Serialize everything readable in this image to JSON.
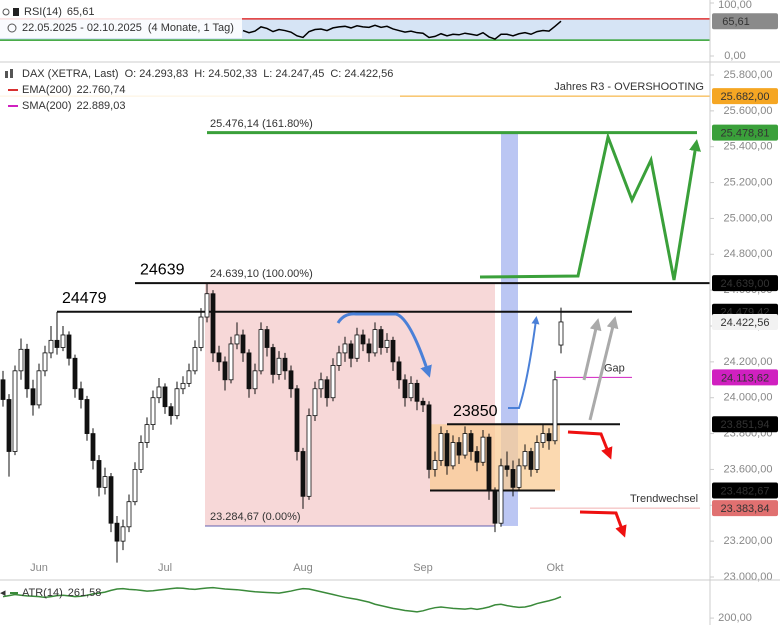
{
  "chart_data": [
    {
      "type": "candlestick",
      "title": "DAX (XETRA, Last)",
      "quote": [
        "O: 24.293,83",
        "H: 24.502,33",
        "L: 24.247,45",
        "C: 24.422,56"
      ],
      "indicators": [
        {
          "name": "EMA(200)",
          "value": "22.760,74",
          "color": "#d83030"
        },
        {
          "name": "SMA(200)",
          "value": "22.889,03",
          "color": "#d020c0"
        }
      ],
      "categories": [
        null,
        null,
        null,
        null,
        null,
        null,
        "Jun",
        null,
        null,
        null,
        null,
        null,
        null,
        null,
        null,
        null,
        null,
        null,
        null,
        null,
        null,
        null,
        null,
        null,
        null,
        null,
        null,
        "Jul",
        null,
        null,
        null,
        null,
        null,
        null,
        null,
        null,
        null,
        null,
        null,
        null,
        null,
        null,
        null,
        null,
        null,
        null,
        null,
        null,
        null,
        null,
        "Aug",
        null,
        null,
        null,
        null,
        null,
        null,
        null,
        null,
        null,
        null,
        null,
        null,
        null,
        null,
        null,
        null,
        null,
        null,
        null,
        "Sep",
        null,
        null,
        null,
        null,
        null,
        null,
        null,
        null,
        null,
        null,
        null,
        null,
        null,
        null,
        null,
        null,
        null,
        null,
        null,
        null,
        null,
        "Okt",
        null
      ],
      "ohlc": [
        [
          24100,
          24150,
          23950,
          23990
        ],
        [
          23990,
          24020,
          23560,
          23700
        ],
        [
          23700,
          24180,
          23680,
          24150
        ],
        [
          24150,
          24330,
          24100,
          24270
        ],
        [
          24270,
          24300,
          24000,
          24050
        ],
        [
          24050,
          24100,
          23900,
          23960
        ],
        [
          23960,
          24190,
          23940,
          24150
        ],
        [
          24150,
          24290,
          24120,
          24250
        ],
        [
          24250,
          24400,
          24220,
          24320
        ],
        [
          24320,
          24479,
          24240,
          24280
        ],
        [
          24280,
          24400,
          24260,
          24350
        ],
        [
          24350,
          24370,
          24180,
          24220
        ],
        [
          24220,
          24240,
          24000,
          24050
        ],
        [
          24050,
          24090,
          23940,
          23990
        ],
        [
          23990,
          24010,
          23760,
          23800
        ],
        [
          23800,
          23830,
          23600,
          23650
        ],
        [
          23650,
          23680,
          23450,
          23500
        ],
        [
          23500,
          23610,
          23460,
          23560
        ],
        [
          23560,
          23580,
          23250,
          23300
        ],
        [
          23300,
          23340,
          23080,
          23200
        ],
        [
          23200,
          23320,
          23150,
          23280
        ],
        [
          23280,
          23460,
          23250,
          23420
        ],
        [
          23420,
          23640,
          23400,
          23600
        ],
        [
          23600,
          23790,
          23580,
          23750
        ],
        [
          23750,
          23890,
          23720,
          23850
        ],
        [
          23850,
          24040,
          23820,
          24000
        ],
        [
          24000,
          24110,
          23970,
          24060
        ],
        [
          24060,
          24080,
          23910,
          23950
        ],
        [
          23950,
          23970,
          23850,
          23900
        ],
        [
          23900,
          24090,
          23880,
          24050
        ],
        [
          24050,
          24120,
          24020,
          24080
        ],
        [
          24080,
          24190,
          24060,
          24150
        ],
        [
          24150,
          24320,
          24130,
          24280
        ],
        [
          24280,
          24500,
          24260,
          24450
        ],
        [
          24450,
          24639,
          24420,
          24580
        ],
        [
          24580,
          24600,
          24200,
          24250
        ],
        [
          24250,
          24290,
          24150,
          24200
        ],
        [
          24200,
          24230,
          24040,
          24100
        ],
        [
          24100,
          24340,
          24080,
          24300
        ],
        [
          24300,
          24420,
          24270,
          24350
        ],
        [
          24350,
          24380,
          24200,
          24250
        ],
        [
          24250,
          24270,
          24000,
          24050
        ],
        [
          24050,
          24190,
          24020,
          24150
        ],
        [
          24150,
          24420,
          24130,
          24380
        ],
        [
          24380,
          24400,
          24230,
          24280
        ],
        [
          24280,
          24300,
          24080,
          24130
        ],
        [
          24130,
          24260,
          24100,
          24220
        ],
        [
          24220,
          24250,
          24100,
          24150
        ],
        [
          24150,
          24180,
          24000,
          24050
        ],
        [
          24050,
          24070,
          23650,
          23700
        ],
        [
          23700,
          23720,
          23380,
          23450
        ],
        [
          23450,
          23940,
          23430,
          23900
        ],
        [
          23900,
          24090,
          23870,
          24050
        ],
        [
          24050,
          24140,
          24000,
          24100
        ],
        [
          24100,
          24120,
          23950,
          24000
        ],
        [
          24000,
          24220,
          23980,
          24180
        ],
        [
          24180,
          24290,
          24150,
          24250
        ],
        [
          24250,
          24340,
          24200,
          24300
        ],
        [
          24300,
          24320,
          24170,
          24220
        ],
        [
          24220,
          24390,
          24200,
          24350
        ],
        [
          24350,
          24380,
          24260,
          24300
        ],
        [
          24300,
          24330,
          24200,
          24250
        ],
        [
          24250,
          24420,
          24230,
          24380
        ],
        [
          24380,
          24400,
          24240,
          24280
        ],
        [
          24280,
          24360,
          24250,
          24320
        ],
        [
          24320,
          24340,
          24150,
          24200
        ],
        [
          24200,
          24230,
          24050,
          24100
        ],
        [
          24100,
          24130,
          23950,
          24000
        ],
        [
          24000,
          24120,
          23980,
          24080
        ],
        [
          24080,
          24100,
          23930,
          23980
        ],
        [
          23980,
          24000,
          23920,
          23960
        ],
        [
          23960,
          23980,
          23550,
          23600
        ],
        [
          23600,
          23700,
          23560,
          23650
        ],
        [
          23650,
          23840,
          23620,
          23800
        ],
        [
          23800,
          23820,
          23570,
          23620
        ],
        [
          23620,
          23790,
          23600,
          23750
        ],
        [
          23750,
          23780,
          23630,
          23680
        ],
        [
          23680,
          23840,
          23660,
          23800
        ],
        [
          23800,
          23820,
          23650,
          23700
        ],
        [
          23700,
          23730,
          23590,
          23640
        ],
        [
          23640,
          23820,
          23620,
          23780
        ],
        [
          23780,
          23800,
          23430,
          23480
        ],
        [
          23480,
          23500,
          23250,
          23300
        ],
        [
          23300,
          23660,
          23280,
          23620
        ],
        [
          23620,
          23700,
          23560,
          23600
        ],
        [
          23600,
          23650,
          23450,
          23500
        ],
        [
          23500,
          23660,
          23480,
          23620
        ],
        [
          23620,
          23740,
          23600,
          23700
        ],
        [
          23700,
          23720,
          23560,
          23600
        ],
        [
          23600,
          23790,
          23580,
          23750
        ],
        [
          23750,
          23850,
          23720,
          23800
        ],
        [
          23800,
          23830,
          23710,
          23760
        ],
        [
          23760,
          24150,
          23740,
          24100
        ],
        [
          24293.83,
          24502.33,
          24247.45,
          24422.56
        ]
      ],
      "ylim": [
        23000,
        25800
      ],
      "yticks": [
        {
          "value": 23000,
          "label": "23.000,00"
        },
        {
          "value": 23200,
          "label": "23.200,00"
        },
        {
          "value": 23400,
          "label": "23.400,00"
        },
        {
          "value": 23600,
          "label": "23.600,00"
        },
        {
          "value": 23800,
          "label": "23.800,00"
        },
        {
          "value": 24000,
          "label": "24.000,00"
        },
        {
          "value": 24200,
          "label": "24.200,00"
        },
        {
          "value": 24400,
          "label": "24.400,00"
        },
        {
          "value": 24600,
          "label": "24.600,00"
        },
        {
          "value": 24800,
          "label": "24.800,00"
        },
        {
          "value": 25000,
          "label": "25.000,00"
        },
        {
          "value": 25200,
          "label": "25.200,00"
        },
        {
          "value": 25400,
          "label": "25.400,00"
        },
        {
          "value": 25600,
          "label": "25.600,00"
        },
        {
          "value": 25800,
          "label": "25.800,00"
        }
      ],
      "levels": [
        {
          "value": 25682,
          "label": "25.682,00",
          "color": "#f5a623",
          "text": "Jahres R3 - OVERSHOOTING"
        },
        {
          "value": 25478.81,
          "label": "25.478,81",
          "color": "#3aa03a"
        },
        {
          "value": 24639,
          "label": "24.639,00",
          "color": "#000000"
        },
        {
          "value": 24479.42,
          "label": "24.479,42",
          "color": "#000000"
        },
        {
          "value": 24422.56,
          "label": "24.422,56",
          "color": "#f2f2f2"
        },
        {
          "value": 24113.62,
          "label": "24.113,62",
          "color": "#d020c0",
          "text": "Gap"
        },
        {
          "value": 23851.94,
          "label": "23.851,94",
          "color": "#000000"
        },
        {
          "value": 23482.67,
          "label": "23.482,67",
          "color": "#000000"
        },
        {
          "value": 23383.84,
          "label": "23.383,84",
          "color": "#e07070",
          "text": "Trendwechsel"
        }
      ],
      "fib": [
        {
          "value": 25476.14,
          "label": "25.476,14 (161.80%)"
        },
        {
          "value": 24639.1,
          "label": "24.639,10 (100.00%)"
        },
        {
          "value": 23284.67,
          "label": "23.284,67 (0.00%)"
        }
      ],
      "big_labels": [
        24639,
        24479,
        23850
      ]
    },
    {
      "type": "line",
      "name": "RSI(14)",
      "date_range": "22.05.2025 - 02.10.2025",
      "span": "(4 Monate, 1 Tag)",
      "color": "#000000",
      "last": {
        "value": 65.61,
        "label": "65,61"
      },
      "values": [
        null,
        null,
        null,
        null,
        null,
        null,
        null,
        null,
        null,
        null,
        null,
        null,
        null,
        null,
        null,
        null,
        null,
        null,
        null,
        null,
        null,
        null,
        null,
        null,
        null,
        null,
        null,
        null,
        null,
        null,
        null,
        null,
        null,
        null,
        null,
        null,
        null,
        null,
        null,
        null,
        48,
        44,
        47,
        55,
        52,
        46,
        50,
        48,
        45,
        38,
        35,
        46,
        50,
        51,
        48,
        53,
        55,
        56,
        53,
        57,
        55,
        54,
        58,
        54,
        56,
        51,
        48,
        45,
        47,
        44,
        43,
        35,
        37,
        42,
        38,
        41,
        40,
        43,
        41,
        39,
        44,
        36,
        32,
        41,
        41,
        38,
        42,
        44,
        41,
        46,
        48,
        47,
        56,
        65.61
      ],
      "ylim": [
        0,
        100
      ],
      "yticks": [
        {
          "value": 0,
          "label": "0,00"
        },
        {
          "value": 100,
          "label": "100,00"
        }
      ],
      "upper": 70,
      "lower": 30,
      "upper_color": "#e03030",
      "lower_color": "#30a030",
      "band_color": "#d6e4f5"
    },
    {
      "type": "line",
      "name": "ATR(14)",
      "color": "#3a8a3a",
      "last": {
        "value": 261.58,
        "label": "261,58"
      },
      "values": [
        262,
        265,
        268,
        266,
        264,
        263,
        262,
        260,
        262,
        265,
        266,
        264,
        262,
        263,
        266,
        270,
        272,
        275,
        280,
        284,
        285,
        283,
        282,
        280,
        278,
        279,
        281,
        283,
        285,
        287,
        286,
        284,
        283,
        285,
        287,
        288,
        286,
        284,
        283,
        282,
        280,
        278,
        276,
        275,
        274,
        273,
        272,
        275,
        278,
        282,
        285,
        284,
        280,
        276,
        272,
        268,
        264,
        260,
        257,
        254,
        250,
        246,
        240,
        236,
        232,
        228,
        225,
        222,
        220,
        218,
        221,
        226,
        230,
        232,
        230,
        228,
        227,
        226,
        228,
        225,
        228,
        232,
        238,
        240,
        236,
        233,
        231,
        232,
        236,
        242,
        246,
        250,
        255,
        261.58
      ],
      "ylim": [
        180,
        310
      ],
      "yticks": [
        {
          "value": 200,
          "label": "200,00"
        }
      ]
    }
  ]
}
